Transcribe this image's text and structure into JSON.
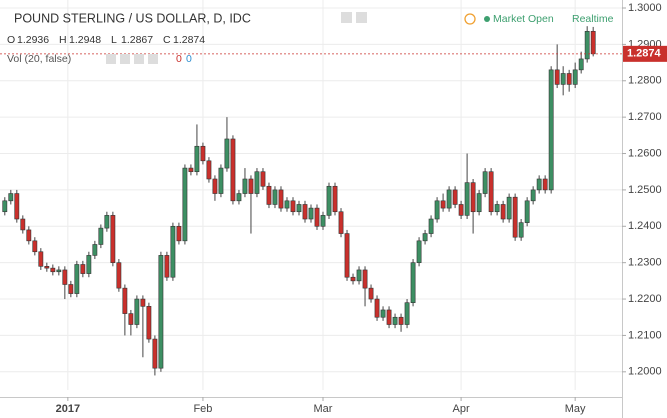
{
  "chart_data": {
    "type": "candlestick",
    "title": "POUND STERLING / US DOLLAR, D, IDC",
    "status": "Market Open",
    "feed": "Realtime",
    "ohlc_labels": [
      "O",
      "H",
      "L",
      "C"
    ],
    "volume_indicator": {
      "label": "Vol (20, false)",
      "values": [
        0,
        0
      ]
    },
    "up_color": "#3d8f63",
    "down_color": "#c9302c",
    "last_price_color": "#c9302c",
    "grid": true,
    "ylim": [
      1.195,
      1.3022
    ],
    "yticks": [
      {
        "value": 1.2,
        "label": "1.2000"
      },
      {
        "value": 1.21,
        "label": "1.2100"
      },
      {
        "value": 1.22,
        "label": "1.2200"
      },
      {
        "value": 1.23,
        "label": "1.2300"
      },
      {
        "value": 1.24,
        "label": "1.2400"
      },
      {
        "value": 1.25,
        "label": "1.2500"
      },
      {
        "value": 1.26,
        "label": "1.2600"
      },
      {
        "value": 1.27,
        "label": "1.2700"
      },
      {
        "value": 1.28,
        "label": "1.2800"
      },
      {
        "value": 1.29,
        "label": "1.2900"
      },
      {
        "value": 1.3,
        "label": "1.3000"
      }
    ],
    "xlim": [
      -0.8,
      102.8
    ],
    "xticks": [
      {
        "value": 10.5,
        "label": "2017"
      },
      {
        "value": 33,
        "label": "Feb"
      },
      {
        "value": 53,
        "label": "Mar"
      },
      {
        "value": 76,
        "label": "Apr"
      },
      {
        "value": 95,
        "label": "May"
      }
    ],
    "open": [
      1.244,
      1.247,
      1.249,
      1.242,
      1.239,
      1.236,
      1.233,
      1.229,
      1.2285,
      1.2275,
      1.228,
      1.224,
      1.2215,
      1.2295,
      1.227,
      1.232,
      1.235,
      1.2395,
      1.243,
      1.23,
      1.223,
      1.216,
      1.213,
      1.22,
      1.218,
      1.209,
      1.201,
      1.232,
      1.226,
      1.24,
      1.236,
      1.256,
      1.255,
      1.262,
      1.258,
      1.253,
      1.249,
      1.256,
      1.264,
      1.247,
      1.249,
      1.253,
      1.249,
      1.255,
      1.251,
      1.246,
      1.25,
      1.245,
      1.247,
      1.244,
      1.246,
      1.242,
      1.245,
      1.24,
      1.243,
      1.251,
      1.244,
      1.238,
      1.226,
      1.225,
      1.228,
      1.223,
      1.22,
      1.215,
      1.217,
      1.213,
      1.215,
      1.213,
      1.219,
      1.23,
      1.236,
      1.238,
      1.242,
      1.247,
      1.245,
      1.25,
      1.246,
      1.243,
      1.252,
      1.244,
      1.249,
      1.255,
      1.244,
      1.246,
      1.242,
      1.248,
      1.237,
      1.241,
      1.247,
      1.25,
      1.253,
      1.25,
      1.283,
      1.279,
      1.282,
      1.279,
      1.283,
      1.286,
      1.2936
    ],
    "high": [
      1.248,
      1.25,
      1.25,
      1.243,
      1.24,
      1.237,
      1.234,
      1.23,
      1.2295,
      1.229,
      1.229,
      1.225,
      1.2305,
      1.2305,
      1.233,
      1.236,
      1.2405,
      1.244,
      1.244,
      1.231,
      1.224,
      1.217,
      1.221,
      1.221,
      1.219,
      1.21,
      1.233,
      1.233,
      1.241,
      1.241,
      1.257,
      1.257,
      1.268,
      1.263,
      1.259,
      1.254,
      1.257,
      1.27,
      1.265,
      1.25,
      1.256,
      1.254,
      1.256,
      1.256,
      1.252,
      1.251,
      1.251,
      1.248,
      1.248,
      1.247,
      1.247,
      1.246,
      1.246,
      1.244,
      1.252,
      1.252,
      1.245,
      1.239,
      1.227,
      1.229,
      1.229,
      1.224,
      1.221,
      1.218,
      1.218,
      1.216,
      1.216,
      1.22,
      1.231,
      1.237,
      1.239,
      1.243,
      1.248,
      1.249,
      1.251,
      1.251,
      1.247,
      1.26,
      1.253,
      1.25,
      1.256,
      1.256,
      1.247,
      1.247,
      1.249,
      1.249,
      1.242,
      1.248,
      1.251,
      1.254,
      1.254,
      1.284,
      1.29,
      1.284,
      1.283,
      1.285,
      1.288,
      1.295,
      1.2948
    ],
    "low": [
      1.243,
      1.246,
      1.241,
      1.238,
      1.235,
      1.232,
      1.228,
      1.2275,
      1.2265,
      1.2265,
      1.22,
      1.2205,
      1.2205,
      1.226,
      1.226,
      1.231,
      1.234,
      1.2385,
      1.229,
      1.222,
      1.21,
      1.21,
      1.212,
      1.204,
      1.208,
      1.199,
      1.2,
      1.225,
      1.225,
      1.235,
      1.235,
      1.254,
      1.254,
      1.257,
      1.252,
      1.247,
      1.248,
      1.255,
      1.246,
      1.246,
      1.248,
      1.238,
      1.248,
      1.25,
      1.245,
      1.245,
      1.244,
      1.244,
      1.243,
      1.243,
      1.241,
      1.241,
      1.239,
      1.239,
      1.242,
      1.243,
      1.237,
      1.225,
      1.224,
      1.224,
      1.218,
      1.219,
      1.214,
      1.214,
      1.212,
      1.212,
      1.211,
      1.212,
      1.218,
      1.229,
      1.235,
      1.237,
      1.241,
      1.244,
      1.244,
      1.245,
      1.242,
      1.242,
      1.238,
      1.243,
      1.248,
      1.243,
      1.243,
      1.241,
      1.241,
      1.236,
      1.236,
      1.24,
      1.246,
      1.249,
      1.249,
      1.249,
      1.278,
      1.276,
      1.277,
      1.278,
      1.282,
      1.285,
      1.2867
    ],
    "close": [
      1.247,
      1.249,
      1.242,
      1.239,
      1.236,
      1.233,
      1.229,
      1.2285,
      1.2275,
      1.228,
      1.224,
      1.2215,
      1.2295,
      1.227,
      1.232,
      1.235,
      1.2395,
      1.243,
      1.23,
      1.223,
      1.216,
      1.213,
      1.22,
      1.218,
      1.209,
      1.201,
      1.232,
      1.226,
      1.24,
      1.236,
      1.256,
      1.255,
      1.262,
      1.258,
      1.253,
      1.249,
      1.256,
      1.264,
      1.247,
      1.249,
      1.253,
      1.249,
      1.255,
      1.251,
      1.246,
      1.25,
      1.245,
      1.247,
      1.244,
      1.246,
      1.242,
      1.245,
      1.24,
      1.243,
      1.251,
      1.244,
      1.238,
      1.226,
      1.225,
      1.228,
      1.223,
      1.22,
      1.215,
      1.217,
      1.213,
      1.215,
      1.213,
      1.219,
      1.23,
      1.236,
      1.238,
      1.242,
      1.247,
      1.245,
      1.25,
      1.246,
      1.243,
      1.252,
      1.244,
      1.249,
      1.255,
      1.244,
      1.246,
      1.242,
      1.248,
      1.237,
      1.241,
      1.247,
      1.25,
      1.253,
      1.25,
      1.283,
      1.279,
      1.282,
      1.279,
      1.283,
      1.286,
      1.2936,
      1.2874
    ]
  }
}
